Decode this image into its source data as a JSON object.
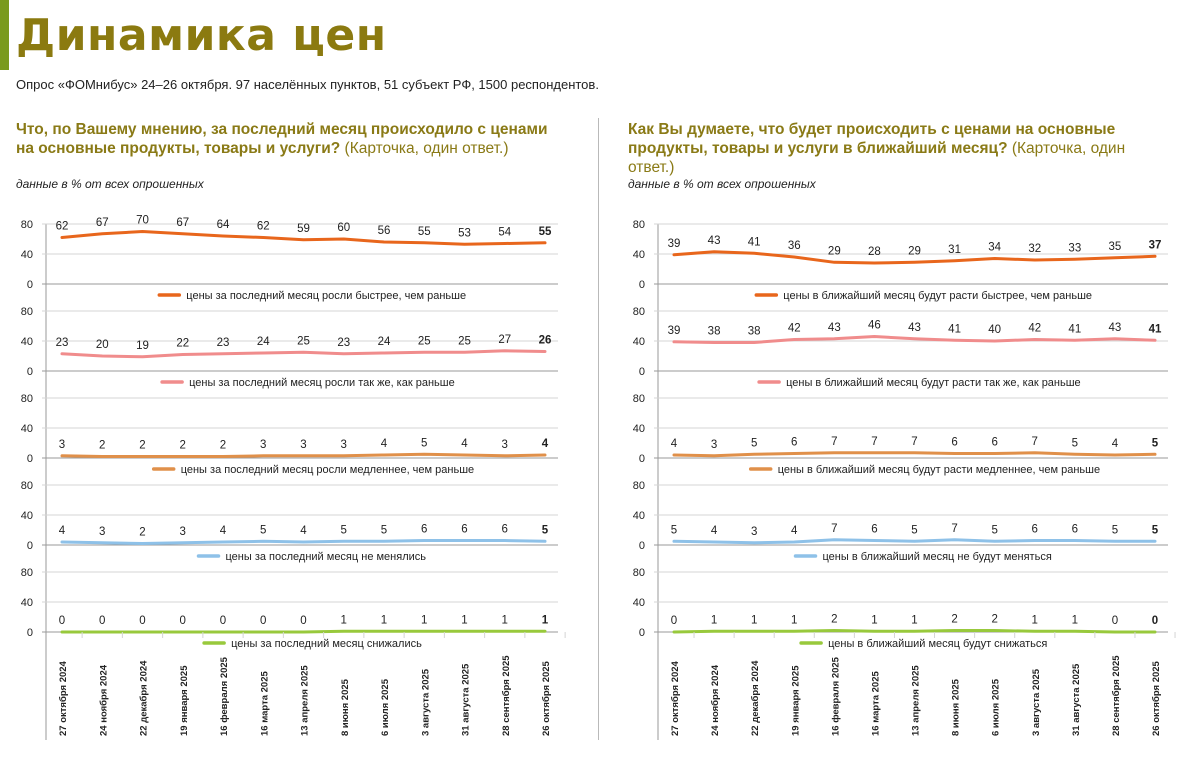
{
  "page": {
    "title": "Динамика цен",
    "subtitle": "Опрос «ФОМнибус» 24–26 октября. 97 населённых пунктов, 51 субъект РФ, 1500 респондентов."
  },
  "colors": {
    "title": "#8b7a10",
    "question": "#8a7a16",
    "series": [
      "#e8661c",
      "#f08c8c",
      "#e0904a",
      "#8ec1e8",
      "#98c93c"
    ]
  },
  "chart_data": [
    {
      "type": "line",
      "question_main": "Что, по Вашему мнению, за последний месяц происходило с ценами на основные продукты, товары и услуги?",
      "question_note": "(Карточка, один ответ.)",
      "unit_note": "данные в % от всех опрошенных",
      "categories": [
        "27 октября 2024",
        "24 ноября 2024",
        "22 декабря 2024",
        "19 января 2025",
        "16 февраля 2025",
        "16 марта 2025",
        "13 апреля 2025",
        "8 июня 2025",
        "6 июля 2025",
        "3 августа 2025",
        "31 августа 2025",
        "28 сентября 2025",
        "26 октября 2025"
      ],
      "y_ticks": [
        "80",
        "40",
        "0"
      ],
      "ylim": [
        0,
        80
      ],
      "series": [
        {
          "name": "цены за последний месяц росли быстрее, чем раньше",
          "values": [
            62,
            67,
            70,
            67,
            64,
            62,
            59,
            60,
            56,
            55,
            53,
            54,
            55
          ]
        },
        {
          "name": "цены за последний месяц росли так же, как раньше",
          "values": [
            23,
            20,
            19,
            22,
            23,
            24,
            25,
            23,
            24,
            25,
            25,
            27,
            26
          ]
        },
        {
          "name": "цены за последний месяц росли медленнее, чем раньше",
          "values": [
            3,
            2,
            2,
            2,
            2,
            3,
            3,
            3,
            4,
            5,
            4,
            3,
            4
          ]
        },
        {
          "name": "цены за последний месяц не менялись",
          "values": [
            4,
            3,
            2,
            3,
            4,
            5,
            4,
            5,
            5,
            6,
            6,
            6,
            5
          ]
        },
        {
          "name": "цены за последний месяц снижались",
          "values": [
            0,
            0,
            0,
            0,
            0,
            0,
            0,
            1,
            1,
            1,
            1,
            1,
            1
          ]
        }
      ]
    },
    {
      "type": "line",
      "question_main": "Как Вы думаете, что будет происходить с ценами на основные продукты, товары и услуги в ближайший месяц?",
      "question_note": "(Карточка, один ответ.)",
      "unit_note": "данные в % от всех опрошенных",
      "categories": [
        "27 октября 2024",
        "24 ноября 2024",
        "22 декабря 2024",
        "19 января 2025",
        "16 февраля 2025",
        "16 марта 2025",
        "13 апреля 2025",
        "8 июня 2025",
        "6 июля 2025",
        "3 августа 2025",
        "31 августа 2025",
        "28 сентября 2025",
        "26 октября 2025"
      ],
      "y_ticks": [
        "80",
        "40",
        "0"
      ],
      "ylim": [
        0,
        80
      ],
      "series": [
        {
          "name": "цены в ближайший месяц будут расти быстрее, чем раньше",
          "values": [
            39,
            43,
            41,
            36,
            29,
            28,
            29,
            31,
            34,
            32,
            33,
            35,
            37
          ]
        },
        {
          "name": "цены в ближайший месяц будут расти так же, как раньше",
          "values": [
            39,
            38,
            38,
            42,
            43,
            46,
            43,
            41,
            40,
            42,
            41,
            43,
            41
          ]
        },
        {
          "name": "цены в ближайший месяц будут расти медленнее, чем раньше",
          "values": [
            4,
            3,
            5,
            6,
            7,
            7,
            7,
            6,
            6,
            7,
            5,
            4,
            5
          ]
        },
        {
          "name": "цены в ближайший месяц не будут меняться",
          "values": [
            5,
            4,
            3,
            4,
            7,
            6,
            5,
            7,
            5,
            6,
            6,
            5,
            5
          ]
        },
        {
          "name": "цены в ближайший месяц будут снижаться",
          "values": [
            0,
            1,
            1,
            1,
            2,
            1,
            1,
            2,
            2,
            1,
            1,
            0,
            0
          ]
        }
      ]
    }
  ]
}
